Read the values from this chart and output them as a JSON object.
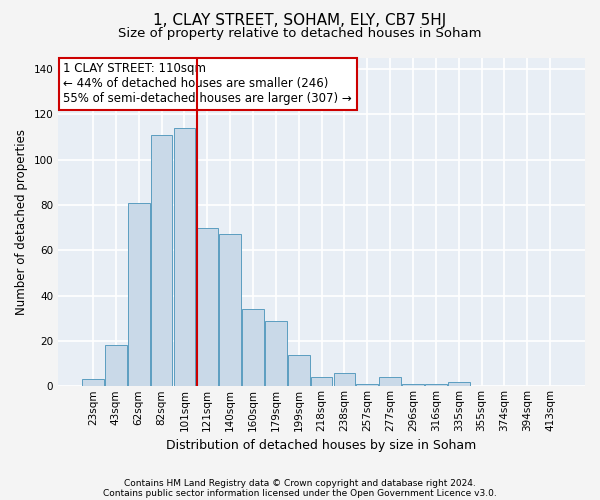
{
  "title": "1, CLAY STREET, SOHAM, ELY, CB7 5HJ",
  "subtitle": "Size of property relative to detached houses in Soham",
  "xlabel": "Distribution of detached houses by size in Soham",
  "ylabel": "Number of detached properties",
  "footer1": "Contains HM Land Registry data © Crown copyright and database right 2024.",
  "footer2": "Contains public sector information licensed under the Open Government Licence v3.0.",
  "bin_labels": [
    "23sqm",
    "43sqm",
    "62sqm",
    "82sqm",
    "101sqm",
    "121sqm",
    "140sqm",
    "160sqm",
    "179sqm",
    "199sqm",
    "218sqm",
    "238sqm",
    "257sqm",
    "277sqm",
    "296sqm",
    "316sqm",
    "335sqm",
    "355sqm",
    "374sqm",
    "394sqm",
    "413sqm"
  ],
  "bar_values": [
    3,
    18,
    81,
    111,
    114,
    70,
    67,
    34,
    29,
    14,
    4,
    6,
    1,
    4,
    1,
    1,
    2,
    0,
    0,
    0,
    0
  ],
  "bar_color": "#c9d9e8",
  "bar_edgecolor": "#5b9dc0",
  "vline_x": 4.55,
  "vline_color": "#cc0000",
  "annotation_line1": "1 CLAY STREET: 110sqm",
  "annotation_line2": "← 44% of detached houses are smaller (246)",
  "annotation_line3": "55% of semi-detached houses are larger (307) →",
  "ylim": [
    0,
    145
  ],
  "yticks": [
    0,
    20,
    40,
    60,
    80,
    100,
    120,
    140
  ],
  "background_color": "#e8eef5",
  "plot_bg_color": "#e8eef5",
  "fig_bg_color": "#f4f4f4",
  "grid_color": "#ffffff",
  "title_fontsize": 11,
  "subtitle_fontsize": 9.5,
  "xlabel_fontsize": 9,
  "ylabel_fontsize": 8.5,
  "tick_fontsize": 7.5,
  "annotation_fontsize": 8.5,
  "footer_fontsize": 6.5
}
